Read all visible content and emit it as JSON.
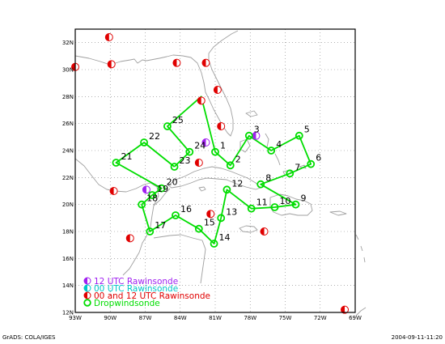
{
  "map": {
    "lon_range": [
      -93,
      -69
    ],
    "lat_range": [
      12,
      33
    ],
    "x_ticks": [
      {
        "lon": -93,
        "label": "93W"
      },
      {
        "lon": -90,
        "label": "90W"
      },
      {
        "lon": -87,
        "label": "87W"
      },
      {
        "lon": -84,
        "label": "84W"
      },
      {
        "lon": -81,
        "label": "81W"
      },
      {
        "lon": -78,
        "label": "78W"
      },
      {
        "lon": -75,
        "label": "75W"
      },
      {
        "lon": -72,
        "label": "72W"
      },
      {
        "lon": -69,
        "label": "69W"
      }
    ],
    "y_ticks": [
      {
        "lat": 12,
        "label": "12N"
      },
      {
        "lat": 14,
        "label": "14N"
      },
      {
        "lat": 16,
        "label": "16N"
      },
      {
        "lat": 18,
        "label": "18N"
      },
      {
        "lat": 20,
        "label": "20N"
      },
      {
        "lat": 22,
        "label": "22N"
      },
      {
        "lat": 24,
        "label": "24N"
      },
      {
        "lat": 26,
        "label": "26N"
      },
      {
        "lat": 28,
        "label": "28N"
      },
      {
        "lat": 30,
        "label": "30N"
      },
      {
        "lat": 32,
        "label": "32N"
      }
    ],
    "colors": {
      "rawin_12": "#a020f0",
      "rawin_00": "#00c8c8",
      "rawin_00_12": "#e00000",
      "dropsonde": "#00dd00",
      "coast": "#a0a0a0",
      "grid": "#808080"
    }
  },
  "legend": [
    {
      "label": "12 UTC Rawinsonde",
      "color": "#a020f0",
      "kind": "half"
    },
    {
      "label": "00 UTC Rawinsonde",
      "color": "#00c8c8",
      "kind": "half"
    },
    {
      "label": "00 and 12 UTC Rawinsonde",
      "color": "#e00000",
      "kind": "half"
    },
    {
      "label": "Dropwindsonde",
      "color": "#00dd00",
      "kind": "ring"
    }
  ],
  "dropsondes": [
    {
      "n": "1",
      "lon": -81.0,
      "lat": 23.9
    },
    {
      "n": "2",
      "lon": -79.7,
      "lat": 22.9
    },
    {
      "n": "3",
      "lon": -78.1,
      "lat": 25.1
    },
    {
      "n": "4",
      "lon": -76.2,
      "lat": 24.0
    },
    {
      "n": "5",
      "lon": -73.8,
      "lat": 25.1
    },
    {
      "n": "6",
      "lon": -72.8,
      "lat": 23.0
    },
    {
      "n": "7",
      "lon": -74.6,
      "lat": 22.3
    },
    {
      "n": "8",
      "lon": -77.1,
      "lat": 21.5
    },
    {
      "n": "9",
      "lon": -74.1,
      "lat": 20.0
    },
    {
      "n": "10",
      "lon": -75.9,
      "lat": 19.8
    },
    {
      "n": "11",
      "lon": -77.9,
      "lat": 19.7
    },
    {
      "n": "12",
      "lon": -80.0,
      "lat": 21.1
    },
    {
      "n": "13",
      "lon": -80.5,
      "lat": 19.0
    },
    {
      "n": "14",
      "lon": -81.1,
      "lat": 17.1
    },
    {
      "n": "15",
      "lon": -82.4,
      "lat": 18.2
    },
    {
      "n": "16",
      "lon": -84.4,
      "lat": 19.2
    },
    {
      "n": "17",
      "lon": -86.6,
      "lat": 18.0
    },
    {
      "n": "18",
      "lon": -87.3,
      "lat": 20.0
    },
    {
      "n": "19",
      "lon": -86.4,
      "lat": 20.7
    },
    {
      "n": "20",
      "lon": -85.6,
      "lat": 21.2
    },
    {
      "n": "21",
      "lon": -89.5,
      "lat": 23.1
    },
    {
      "n": "22",
      "lon": -87.1,
      "lat": 24.6
    },
    {
      "n": "23",
      "lon": -84.5,
      "lat": 22.8
    },
    {
      "n": "24",
      "lon": -83.2,
      "lat": 23.9
    },
    {
      "n": "25",
      "lon": -85.1,
      "lat": 25.8
    }
  ],
  "route": [
    "23",
    "24",
    "25",
    "27",
    "1",
    "2",
    "3",
    "4",
    "5",
    "6",
    "7",
    "8",
    "9",
    "10",
    "11",
    "12",
    "13",
    "14",
    "15",
    "16",
    "17",
    "18",
    "19",
    "20",
    "21",
    "22",
    "23"
  ],
  "route_extra_point": {
    "id": "27",
    "lon": -82.2,
    "lat": 28.0
  },
  "rawinsondes": [
    {
      "lon": -90.1,
      "lat": 32.4,
      "type": "00_12"
    },
    {
      "lon": -93.0,
      "lat": 30.2,
      "type": "00_12"
    },
    {
      "lon": -89.9,
      "lat": 30.4,
      "type": "00_12"
    },
    {
      "lon": -84.3,
      "lat": 30.5,
      "type": "00_12"
    },
    {
      "lon": -81.8,
      "lat": 30.5,
      "type": "00_12"
    },
    {
      "lon": -80.8,
      "lat": 28.5,
      "type": "00_12"
    },
    {
      "lon": -82.2,
      "lat": 27.7,
      "type": "00_12"
    },
    {
      "lon": -80.5,
      "lat": 25.8,
      "type": "00_12"
    },
    {
      "lon": -81.8,
      "lat": 24.6,
      "type": "12"
    },
    {
      "lon": -77.5,
      "lat": 25.1,
      "type": "12"
    },
    {
      "lon": -82.4,
      "lat": 23.1,
      "type": "00_12"
    },
    {
      "lon": -89.7,
      "lat": 21.0,
      "type": "00_12"
    },
    {
      "lon": -86.9,
      "lat": 21.1,
      "type": "12"
    },
    {
      "lon": -81.4,
      "lat": 19.3,
      "type": "00_12"
    },
    {
      "lon": -76.8,
      "lat": 18.0,
      "type": "00_12"
    },
    {
      "lon": -88.3,
      "lat": 17.5,
      "type": "00_12"
    },
    {
      "lon": -69.9,
      "lat": 12.2,
      "type": "00_12"
    }
  ],
  "footer": {
    "left": "GrADS: COLA/IGES",
    "right": "2004-09-11-11:20"
  }
}
